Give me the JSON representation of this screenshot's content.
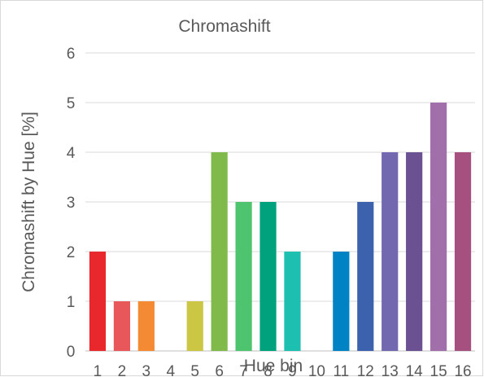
{
  "chart_data": {
    "type": "bar",
    "title": "Chromashift",
    "xlabel": "Hue bin",
    "ylabel": "Chromashift by Hue [%]",
    "categories": [
      "1",
      "2",
      "3",
      "4",
      "5",
      "6",
      "7",
      "8",
      "9",
      "10",
      "11",
      "12",
      "13",
      "14",
      "15",
      "16"
    ],
    "values": [
      2,
      1,
      1,
      0,
      1,
      4,
      3,
      3,
      2,
      0,
      2,
      3,
      4,
      4,
      5,
      4
    ],
    "colors": [
      "#e8282d",
      "#e8585a",
      "#f58a35",
      "#f0b32f",
      "#cbc745",
      "#7fba4a",
      "#4ec46e",
      "#00a27d",
      "#1dbfb0",
      "#37b6d0",
      "#0083c4",
      "#3c62ad",
      "#7268b0",
      "#6c5192",
      "#a16fa9",
      "#a5507f"
    ],
    "ylim": [
      0,
      6
    ],
    "yticks": [
      0,
      1,
      2,
      3,
      4,
      5,
      6
    ],
    "grid": true,
    "legend": "none"
  }
}
